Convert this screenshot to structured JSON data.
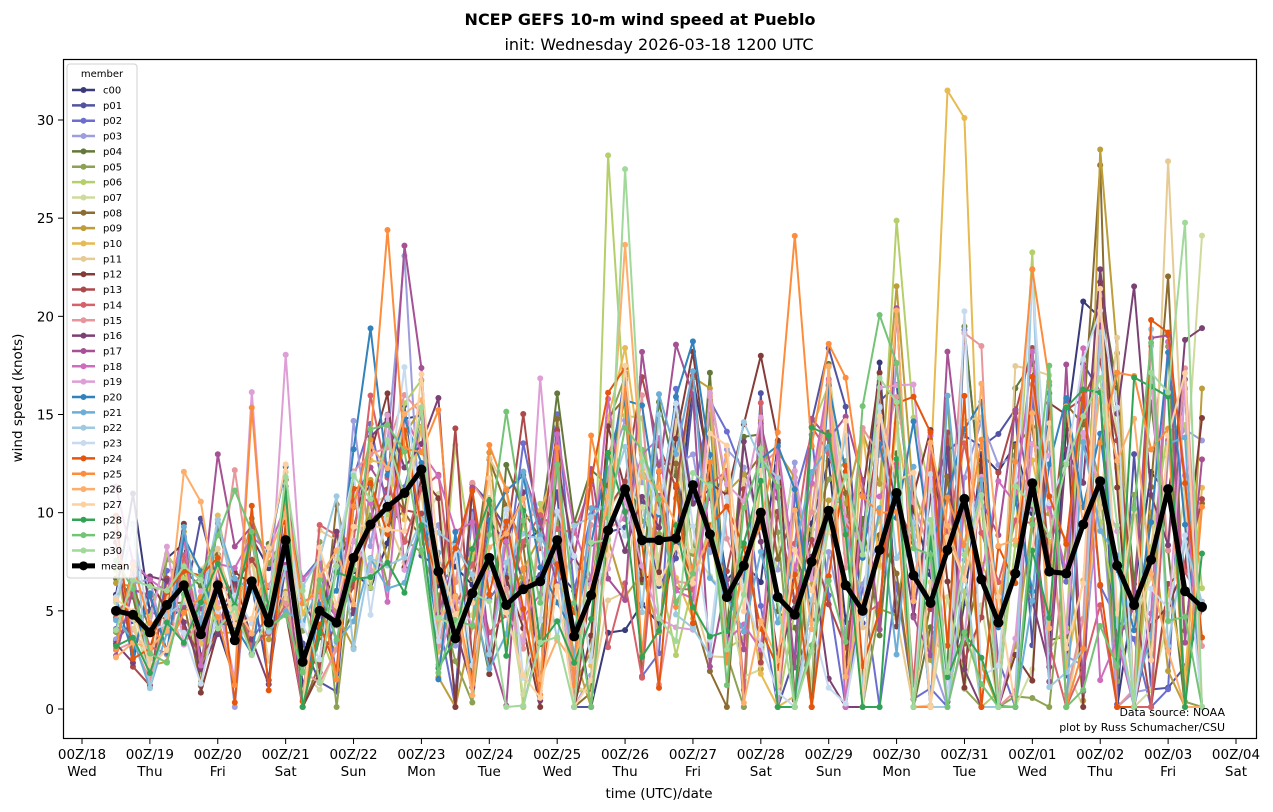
{
  "chart_data": {
    "type": "line",
    "title": "NCEP GEFS 10-m wind speed at Pueblo",
    "subtitle": "init: Wednesday 2026-03-18 1200 UTC",
    "xlabel": "time (UTC)/date",
    "ylabel": "wind speed (knots)",
    "ylim": [
      -1.5,
      33
    ],
    "yticks": [
      0,
      5,
      10,
      15,
      20,
      25,
      30
    ],
    "xticks": [
      {
        "top": "00Z/18",
        "bottom": "Wed"
      },
      {
        "top": "00Z/19",
        "bottom": "Thu"
      },
      {
        "top": "00Z/20",
        "bottom": "Fri"
      },
      {
        "top": "00Z/21",
        "bottom": "Sat"
      },
      {
        "top": "00Z/22",
        "bottom": "Sun"
      },
      {
        "top": "00Z/23",
        "bottom": "Mon"
      },
      {
        "top": "00Z/24",
        "bottom": "Tue"
      },
      {
        "top": "00Z/25",
        "bottom": "Wed"
      },
      {
        "top": "00Z/26",
        "bottom": "Thu"
      },
      {
        "top": "00Z/27",
        "bottom": "Fri"
      },
      {
        "top": "00Z/28",
        "bottom": "Sat"
      },
      {
        "top": "00Z/29",
        "bottom": "Sun"
      },
      {
        "top": "00Z/30",
        "bottom": "Mon"
      },
      {
        "top": "00Z/31",
        "bottom": "Tue"
      },
      {
        "top": "00Z/01",
        "bottom": "Wed"
      },
      {
        "top": "00Z/02",
        "bottom": "Thu"
      },
      {
        "top": "00Z/03",
        "bottom": "Fri"
      },
      {
        "top": "00Z/04",
        "bottom": "Sat"
      }
    ],
    "legend": {
      "title": "member",
      "placement": "top-left"
    },
    "members": [
      {
        "name": "c00",
        "color": "#393b79"
      },
      {
        "name": "p01",
        "color": "#5254a3"
      },
      {
        "name": "p02",
        "color": "#6b6ecf"
      },
      {
        "name": "p03",
        "color": "#9c9ede"
      },
      {
        "name": "p04",
        "color": "#637939"
      },
      {
        "name": "p05",
        "color": "#8ca252"
      },
      {
        "name": "p06",
        "color": "#b5cf6b"
      },
      {
        "name": "p07",
        "color": "#cedb9c"
      },
      {
        "name": "p08",
        "color": "#8c6d31"
      },
      {
        "name": "p09",
        "color": "#bd9e39"
      },
      {
        "name": "p10",
        "color": "#e7ba52"
      },
      {
        "name": "p11",
        "color": "#e7cb94"
      },
      {
        "name": "p12",
        "color": "#843c39"
      },
      {
        "name": "p13",
        "color": "#ad494a"
      },
      {
        "name": "p14",
        "color": "#d6616b"
      },
      {
        "name": "p15",
        "color": "#e7969c"
      },
      {
        "name": "p16",
        "color": "#7b4173"
      },
      {
        "name": "p17",
        "color": "#a55194"
      },
      {
        "name": "p18",
        "color": "#ce6dbd"
      },
      {
        "name": "p19",
        "color": "#de9ed6"
      },
      {
        "name": "p20",
        "color": "#3182bd"
      },
      {
        "name": "p21",
        "color": "#6baed6"
      },
      {
        "name": "p22",
        "color": "#9ecae1"
      },
      {
        "name": "p23",
        "color": "#c6dbef"
      },
      {
        "name": "p24",
        "color": "#e6550d"
      },
      {
        "name": "p25",
        "color": "#fd8d3c"
      },
      {
        "name": "p26",
        "color": "#fdae6b"
      },
      {
        "name": "p27",
        "color": "#fdd0a2"
      },
      {
        "name": "p28",
        "color": "#31a354"
      },
      {
        "name": "p29",
        "color": "#74c476"
      },
      {
        "name": "p30",
        "color": "#a1d99b"
      }
    ],
    "mean": {
      "name": "mean",
      "color": "#000000",
      "values": [
        5.0,
        4.8,
        3.9,
        5.3,
        6.3,
        3.8,
        6.3,
        3.5,
        6.5,
        4.4,
        8.6,
        2.4,
        5.0,
        4.4,
        7.7,
        9.4,
        10.3,
        11.0,
        12.2,
        7.0,
        3.6,
        5.9,
        7.7,
        5.3,
        6.1,
        6.5,
        8.6,
        3.7,
        5.8,
        9.1,
        11.2,
        8.6,
        8.6,
        8.7,
        11.4,
        8.9,
        5.7,
        7.3,
        10.0,
        5.7,
        4.8,
        7.5,
        10.1,
        6.3,
        5.0,
        8.1,
        11.0,
        6.8,
        5.4,
        8.1,
        10.7,
        6.6,
        4.4,
        6.9,
        11.5,
        7.0,
        6.9,
        9.4,
        11.6,
        7.3,
        5.3,
        7.6,
        11.2,
        6.0,
        5.2
      ]
    },
    "member_peaks": [
      {
        "member": "p06",
        "step": 29,
        "value": 28.2
      },
      {
        "member": "p30",
        "step": 30,
        "value": 27.5
      },
      {
        "member": "p10",
        "step": 49,
        "value": 31.5
      },
      {
        "member": "p10",
        "step": 50,
        "value": 30.1
      },
      {
        "member": "p09",
        "step": 58,
        "value": 28.5
      },
      {
        "member": "p08",
        "step": 58,
        "value": 27.7
      },
      {
        "member": "p11",
        "step": 62,
        "value": 27.9
      },
      {
        "member": "p25",
        "step": 16,
        "value": 24.4
      },
      {
        "member": "p17",
        "step": 17,
        "value": 23.6
      },
      {
        "member": "p25",
        "step": 40,
        "value": 24.1
      },
      {
        "member": "p16",
        "step": 63,
        "value": 18.8
      },
      {
        "member": "p16",
        "step": 64,
        "value": 19.4
      }
    ],
    "annotations": [
      "Data source: NOAA",
      "plot by Russ Schumacher/CSU"
    ],
    "grid": false
  }
}
